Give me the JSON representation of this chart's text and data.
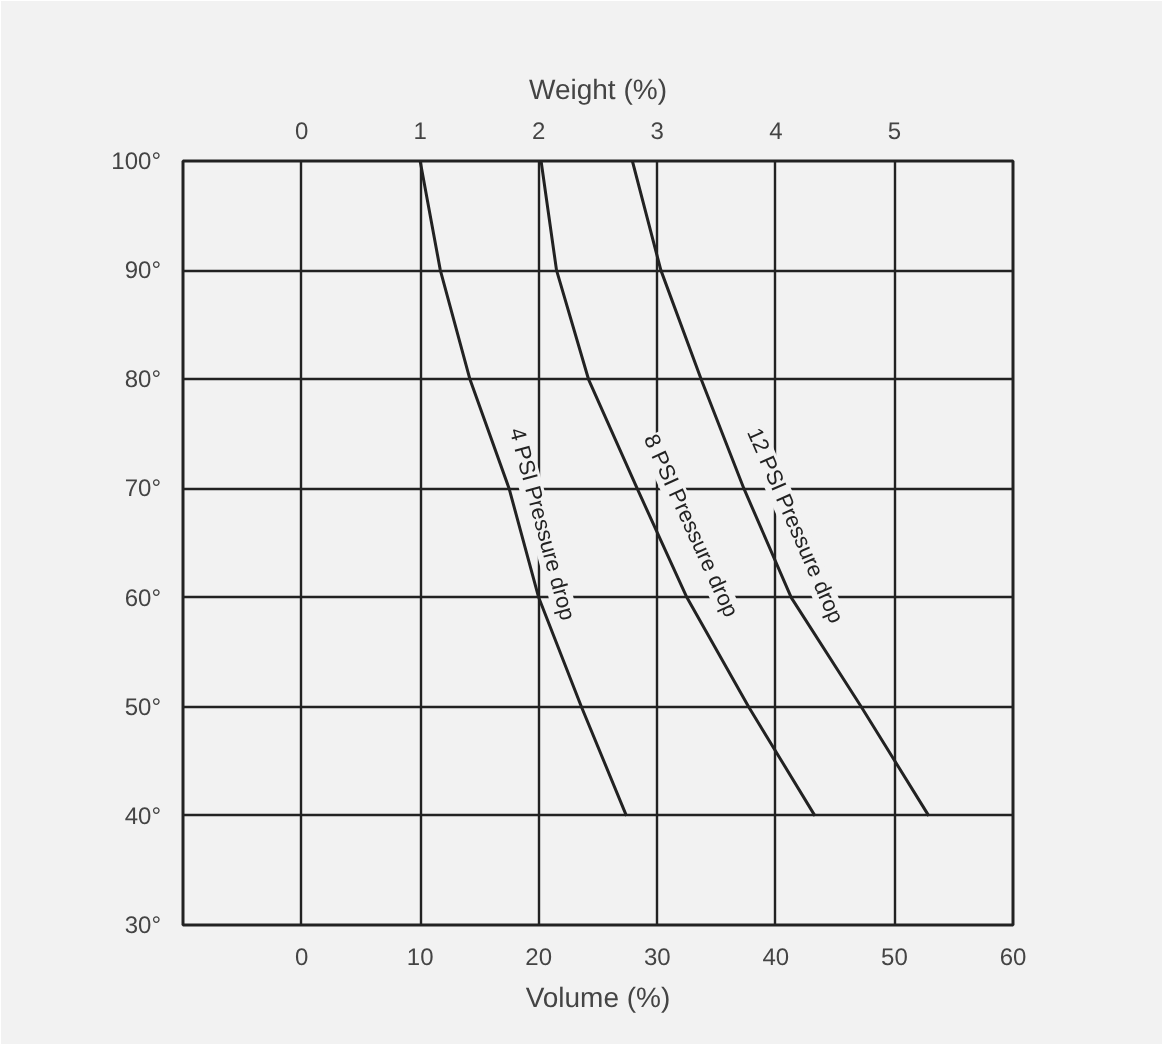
{
  "chart_data": {
    "type": "line",
    "xlabel": "Volume (%)",
    "x2label": "Weight (%)",
    "xlim": [
      -10,
      60
    ],
    "xticks": [
      0,
      10,
      20,
      30,
      40,
      50,
      60
    ],
    "x2lim": [
      -1,
      6
    ],
    "x2ticks": [
      0,
      1,
      2,
      3,
      4,
      5
    ],
    "ylim": [
      30,
      100
    ],
    "yticks": [
      {
        "value": 30,
        "label": "30°"
      },
      {
        "value": 40,
        "label": "40°"
      },
      {
        "value": 50,
        "label": "50°"
      },
      {
        "value": 60,
        "label": "60°"
      },
      {
        "value": 70,
        "label": "70°"
      },
      {
        "value": 80,
        "label": "80°"
      },
      {
        "value": 90,
        "label": "90°"
      },
      {
        "value": 100,
        "label": "100°"
      }
    ],
    "grid": true,
    "marker": "none",
    "line_style": "solid",
    "series": [
      {
        "name": "4 PSI Pressure drop",
        "color": "#222222",
        "x": [
          10,
          11.7,
          14.2,
          17.5,
          20.0,
          23.6,
          27.4
        ],
        "values": [
          100,
          90,
          80,
          70,
          60,
          50,
          40
        ]
      },
      {
        "name": "8 PSI Pressure drop",
        "color": "#222222",
        "x": [
          20.2,
          21.5,
          24.2,
          28.3,
          32.5,
          37.7,
          43.3
        ],
        "values": [
          100,
          90,
          80,
          70,
          60,
          50,
          40
        ]
      },
      {
        "name": "12 PSI Pressure drop",
        "color": "#222222",
        "x": [
          27.9,
          30.3,
          33.7,
          37.3,
          41.3,
          47.2,
          52.9
        ],
        "values": [
          100,
          90,
          80,
          70,
          60,
          50,
          40
        ]
      }
    ]
  }
}
